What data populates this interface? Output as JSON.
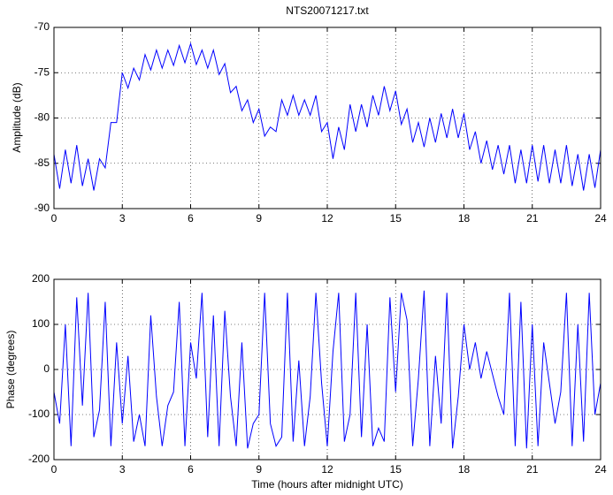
{
  "chart_data": [
    {
      "type": "line",
      "title": "NTS20071217.txt",
      "y_label": "Amplitude (dB)",
      "x": [
        0,
        0.25,
        0.5,
        0.75,
        1,
        1.25,
        1.5,
        1.75,
        2,
        2.25,
        2.5,
        2.75,
        3,
        3.25,
        3.5,
        3.75,
        4,
        4.25,
        4.5,
        4.75,
        5,
        5.25,
        5.5,
        5.75,
        6,
        6.25,
        6.5,
        6.75,
        7,
        7.25,
        7.5,
        7.75,
        8,
        8.25,
        8.5,
        8.75,
        9,
        9.25,
        9.5,
        9.75,
        10,
        10.25,
        10.5,
        10.75,
        11,
        11.25,
        11.5,
        11.75,
        12,
        12.25,
        12.5,
        12.75,
        13,
        13.25,
        13.5,
        13.75,
        14,
        14.25,
        14.5,
        14.75,
        15,
        15.25,
        15.5,
        15.75,
        16,
        16.25,
        16.5,
        16.75,
        17,
        17.25,
        17.5,
        17.75,
        18,
        18.25,
        18.5,
        18.75,
        19,
        19.25,
        19.5,
        19.75,
        20,
        20.25,
        20.5,
        20.75,
        21,
        21.25,
        21.5,
        21.75,
        22,
        22.25,
        22.5,
        22.75,
        23,
        23.25,
        23.5,
        23.75,
        24
      ],
      "values": [
        -84,
        -87.8,
        -83.5,
        -87.2,
        -83,
        -87.5,
        -84.5,
        -88,
        -84.5,
        -85.5,
        -80.5,
        -80.5,
        -75,
        -76.7,
        -74.5,
        -75.8,
        -73,
        -74.7,
        -72.5,
        -74.5,
        -72.5,
        -74.2,
        -72,
        -73.9,
        -71.8,
        -74.1,
        -72.5,
        -74.5,
        -72.5,
        -75.2,
        -74,
        -77.2,
        -76.5,
        -79.2,
        -78,
        -80.5,
        -79,
        -82,
        -81,
        -81.5,
        -78,
        -79.7,
        -77.5,
        -79.7,
        -78,
        -79.7,
        -77.5,
        -81.5,
        -80.5,
        -84.5,
        -81,
        -83.5,
        -78.5,
        -81.5,
        -78.5,
        -81,
        -77.5,
        -79.7,
        -76.5,
        -79.2,
        -77,
        -80.7,
        -79,
        -82.7,
        -80.5,
        -83.2,
        -80,
        -82.7,
        -79.5,
        -82.2,
        -79,
        -82.2,
        -79.5,
        -83.5,
        -81.5,
        -85,
        -82.5,
        -85.7,
        -83,
        -86.2,
        -83,
        -87.2,
        -83.5,
        -87.2,
        -83,
        -87,
        -83,
        -87.2,
        -83.5,
        -87.2,
        -83,
        -87.5,
        -84,
        -88,
        -84,
        -87.7,
        -83.5
      ],
      "color": "#0000ff",
      "xlim": [
        0,
        24
      ],
      "xticks": [
        0,
        3,
        6,
        9,
        12,
        15,
        18,
        21,
        24
      ],
      "ylim": [
        -90,
        -70
      ],
      "yticks": [
        -90,
        -85,
        -80,
        -75,
        -70
      ],
      "grid": true
    },
    {
      "type": "line",
      "x_label": "Time (hours after midnight UTC)",
      "y_label": "Phase (degrees)",
      "x": [
        0,
        0.25,
        0.5,
        0.75,
        1,
        1.25,
        1.5,
        1.75,
        2,
        2.25,
        2.5,
        2.75,
        3,
        3.25,
        3.5,
        3.75,
        4,
        4.25,
        4.5,
        4.75,
        5,
        5.25,
        5.5,
        5.75,
        6,
        6.25,
        6.5,
        6.75,
        7,
        7.25,
        7.5,
        7.75,
        8,
        8.25,
        8.5,
        8.75,
        9,
        9.25,
        9.5,
        9.75,
        10,
        10.25,
        10.5,
        10.75,
        11,
        11.25,
        11.5,
        11.75,
        12,
        12.25,
        12.5,
        12.75,
        13,
        13.25,
        13.5,
        13.75,
        14,
        14.25,
        14.5,
        14.75,
        15,
        15.25,
        15.5,
        15.75,
        16,
        16.25,
        16.5,
        16.75,
        17,
        17.25,
        17.5,
        17.75,
        18,
        18.25,
        18.5,
        18.75,
        19,
        19.25,
        19.5,
        19.75,
        20,
        20.25,
        20.5,
        20.75,
        21,
        21.25,
        21.5,
        21.75,
        22,
        22.25,
        22.5,
        22.75,
        23,
        23.25,
        23.5,
        23.75,
        24
      ],
      "values": [
        -50,
        -120,
        100,
        -170,
        160,
        -80,
        170,
        -150,
        -90,
        150,
        -170,
        60,
        -120,
        30,
        -160,
        -100,
        -170,
        120,
        -60,
        -170,
        -80,
        -50,
        150,
        -170,
        60,
        -20,
        170,
        -150,
        120,
        -170,
        130,
        -60,
        -170,
        60,
        -175,
        -120,
        -100,
        170,
        -120,
        -170,
        -150,
        170,
        -160,
        20,
        -170,
        -60,
        170,
        -30,
        -170,
        40,
        170,
        -160,
        -100,
        170,
        -150,
        100,
        -170,
        -130,
        -160,
        160,
        -50,
        170,
        110,
        -170,
        -20,
        175,
        -170,
        30,
        -120,
        170,
        -175,
        -60,
        100,
        0,
        60,
        -20,
        40,
        -10,
        -60,
        -100,
        170,
        -170,
        150,
        -175,
        100,
        -170,
        60,
        -30,
        -120,
        -50,
        170,
        -170,
        100,
        -160,
        170,
        -100,
        -30
      ],
      "color": "#0000ff",
      "xlim": [
        0,
        24
      ],
      "xticks": [
        0,
        3,
        6,
        9,
        12,
        15,
        18,
        21,
        24
      ],
      "ylim": [
        -200,
        200
      ],
      "yticks": [
        -200,
        -100,
        0,
        100,
        200
      ],
      "grid": true
    }
  ]
}
